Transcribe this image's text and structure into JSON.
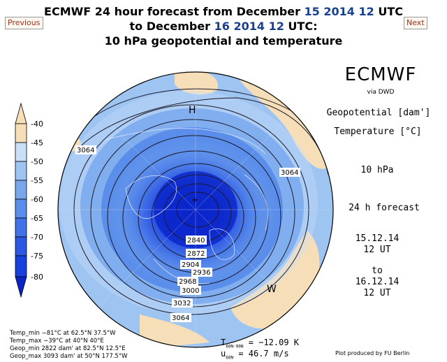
{
  "header": {
    "line1_prefix": "ECMWF 24 hour forecast from December ",
    "line1_day": "15",
    "line1_year": "2014",
    "line1_hour": "12",
    "line1_suffix": " UTC",
    "line2_prefix": "to December ",
    "line2_day": "16",
    "line2_year": "2014",
    "line2_hour": "12",
    "line2_suffix": " UTC:",
    "line3": "10 hPa geopotential and temperature"
  },
  "nav": {
    "previous": "Previous",
    "next": "Next"
  },
  "side_info": {
    "model": "ECMWF",
    "via": "via DWD",
    "geopotential": "Geopotential [dam']",
    "temperature": "Temperature [°C]",
    "level": "10 hPa",
    "forecast": "24 h forecast",
    "from_date": "15.12.14",
    "from_time": "12 UT",
    "to": "to",
    "to_date": "16.12.14",
    "to_time": "12 UT"
  },
  "legend": {
    "labels": [
      "-40",
      "-45",
      "-50",
      "-55",
      "-60",
      "-65",
      "-70",
      "-75",
      "-80"
    ],
    "colors": [
      "#f6deb8",
      "#c8e0f8",
      "#9ec4f2",
      "#78a8ec",
      "#5a8eea",
      "#4272e8",
      "#2c58e4",
      "#1840dc",
      "#0a24c8"
    ]
  },
  "map": {
    "high_marker": "H",
    "west_marker": "W",
    "contour_labels": [
      "3064",
      "3064",
      "3064",
      "2840",
      "2872",
      "2904",
      "2936",
      "2968",
      "3000",
      "3032"
    ]
  },
  "stats": {
    "temp_min": "Temp_min  −81°C at 62.5°N 37.5°W",
    "temp_max": "Temp_max  −39°C at 40°N 40°E",
    "geop_min": "Geop_min 2822 dam' at 82.5°N 12.5°E",
    "geop_max": "Geop_max 3093 dam' at 50°N 177.5°W"
  },
  "mean_values": {
    "t_label": "T",
    "t_sub": "60N-90N",
    "t_value": "=  −12.09 K",
    "u_label": "u",
    "u_sub": "60N",
    "u_value": "=   46.7 m/s"
  },
  "credit": "Plot produced by FU Berlin"
}
